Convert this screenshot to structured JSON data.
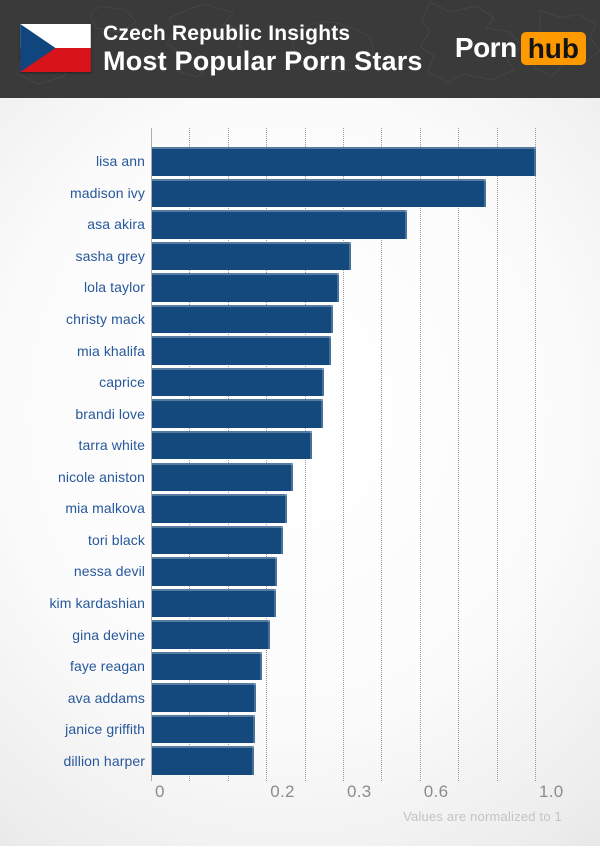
{
  "header": {
    "title_line1": "Czech Republic Insights",
    "title_line2": "Most Popular Porn Stars",
    "flag_country": "czech-republic",
    "brand": {
      "part1": "Porn",
      "part2": "hub"
    }
  },
  "footnote": "Values are normalized to 1",
  "colors": {
    "header_bg": "#3A3A3A",
    "bar_blue": "#14497D",
    "label_blue": "#27589B",
    "brand_orange": "#FF9900",
    "brand_text_dark": "#141414",
    "flag_red": "#D7141A",
    "flag_blue": "#11457E",
    "tick_gray": "#8C8C8C"
  },
  "chart_data": {
    "type": "bar",
    "orientation": "horizontal",
    "title": "Most Popular Porn Stars",
    "subtitle": "Czech Republic Insights",
    "xlabel": "",
    "ylabel": "",
    "xlim": [
      0,
      1
    ],
    "grid": "dotted-vertical",
    "gridline_count": 10,
    "note": "Values are normalized to 1",
    "categories": [
      "lisa ann",
      "madison ivy",
      "asa akira",
      "sasha grey",
      "lola taylor",
      "christy mack",
      "mia khalifa",
      "caprice",
      "brandi love",
      "tarra white",
      "nicole aniston",
      "mia malkova",
      "tori black",
      "nessa devil",
      "kim kardashian",
      "gina devine",
      "faye reagan",
      "ava addams",
      "janice griffith",
      "dillion harper"
    ],
    "values": [
      1.0,
      0.83,
      0.55,
      0.33,
      0.29,
      0.29,
      0.28,
      0.28,
      0.27,
      0.26,
      0.24,
      0.23,
      0.22,
      0.21,
      0.21,
      0.2,
      0.19,
      0.18,
      0.18,
      0.18
    ],
    "bar_fracs": [
      1.0,
      0.87,
      0.664,
      0.518,
      0.487,
      0.471,
      0.466,
      0.448,
      0.445,
      0.417,
      0.367,
      0.352,
      0.341,
      0.326,
      0.323,
      0.307,
      0.286,
      0.271,
      0.268,
      0.266
    ],
    "ticks": [
      {
        "label": "0",
        "grid": 0
      },
      {
        "label": "0.2",
        "grid": 3
      },
      {
        "label": "0.3",
        "grid": 5
      },
      {
        "label": "0.6",
        "grid": 7
      },
      {
        "label": "1.0",
        "grid": 10
      }
    ]
  }
}
